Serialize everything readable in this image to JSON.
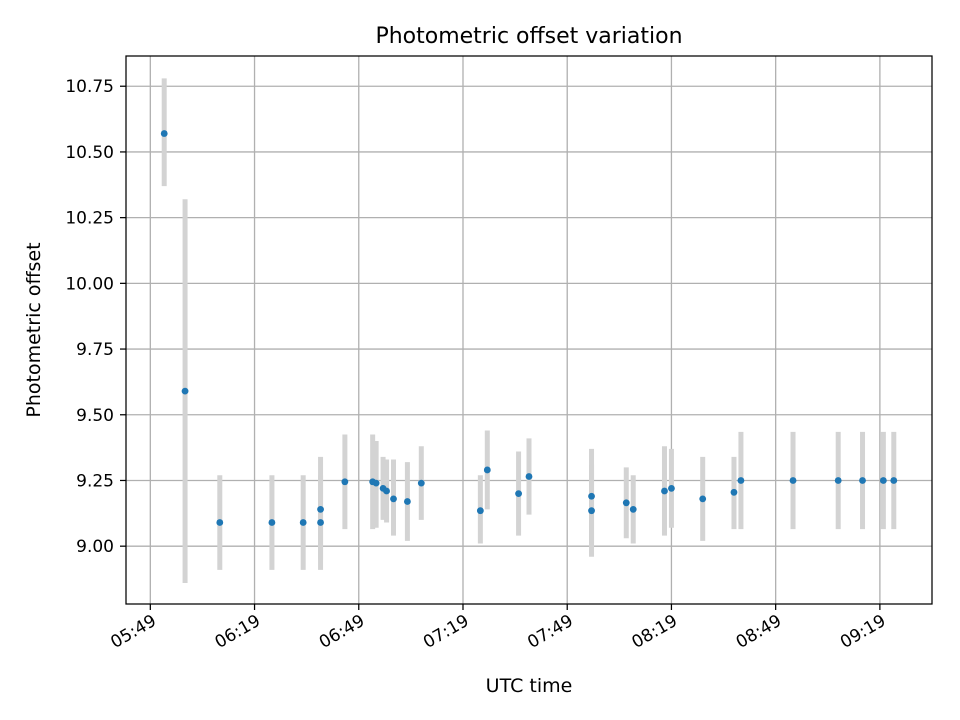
{
  "chart_data": {
    "type": "scatter",
    "title": "Photometric offset variation",
    "xlabel": "UTC time",
    "ylabel": "Photometric offset",
    "x_unit": "UTC HH:MM",
    "xlim": [
      "05:42",
      "09:34"
    ],
    "ylim": [
      8.78,
      10.865
    ],
    "x_ticks": [
      "05:49",
      "06:19",
      "06:49",
      "07:19",
      "07:49",
      "08:19",
      "08:49",
      "09:19"
    ],
    "y_ticks": [
      "9.00",
      "9.25",
      "9.50",
      "9.75",
      "10.00",
      "10.25",
      "10.50",
      "10.75"
    ],
    "grid": true,
    "colors": {
      "points": "#1f77b4",
      "errorbars": "#d3d3d3",
      "grid": "#b0b0b0"
    },
    "series": [
      {
        "points": [
          {
            "x": "05:53",
            "y": 10.57,
            "ylo": 10.37,
            "yhi": 10.78
          },
          {
            "x": "05:59",
            "y": 9.59,
            "ylo": 8.86,
            "yhi": 10.32
          },
          {
            "x": "06:09",
            "y": 9.09,
            "ylo": 8.91,
            "yhi": 9.27
          },
          {
            "x": "06:24",
            "y": 9.09,
            "ylo": 8.91,
            "yhi": 9.27
          },
          {
            "x": "06:33",
            "y": 9.09,
            "ylo": 8.91,
            "yhi": 9.27
          },
          {
            "x": "06:38",
            "y": 9.09,
            "ylo": 8.91,
            "yhi": 9.27
          },
          {
            "x": "06:38",
            "y": 9.14,
            "ylo": 8.95,
            "yhi": 9.34
          },
          {
            "x": "06:45",
            "y": 9.245,
            "ylo": 9.065,
            "yhi": 9.425
          },
          {
            "x": "06:53",
            "y": 9.245,
            "ylo": 9.065,
            "yhi": 9.425
          },
          {
            "x": "06:54",
            "y": 9.24,
            "ylo": 9.07,
            "yhi": 9.4
          },
          {
            "x": "06:56",
            "y": 9.22,
            "ylo": 9.1,
            "yhi": 9.34
          },
          {
            "x": "06:57",
            "y": 9.21,
            "ylo": 9.09,
            "yhi": 9.33
          },
          {
            "x": "06:59",
            "y": 9.18,
            "ylo": 9.04,
            "yhi": 9.33
          },
          {
            "x": "07:03",
            "y": 9.17,
            "ylo": 9.02,
            "yhi": 9.32
          },
          {
            "x": "07:07",
            "y": 9.24,
            "ylo": 9.1,
            "yhi": 9.38
          },
          {
            "x": "07:24",
            "y": 9.135,
            "ylo": 9.01,
            "yhi": 9.27
          },
          {
            "x": "07:26",
            "y": 9.29,
            "ylo": 9.14,
            "yhi": 9.44
          },
          {
            "x": "07:35",
            "y": 9.2,
            "ylo": 9.04,
            "yhi": 9.36
          },
          {
            "x": "07:38",
            "y": 9.265,
            "ylo": 9.12,
            "yhi": 9.41
          },
          {
            "x": "07:56",
            "y": 9.19,
            "ylo": 9.01,
            "yhi": 9.37
          },
          {
            "x": "07:56",
            "y": 9.135,
            "ylo": 8.96,
            "yhi": 9.31
          },
          {
            "x": "08:06",
            "y": 9.165,
            "ylo": 9.03,
            "yhi": 9.3
          },
          {
            "x": "08:08",
            "y": 9.14,
            "ylo": 9.01,
            "yhi": 9.27
          },
          {
            "x": "08:17",
            "y": 9.21,
            "ylo": 9.04,
            "yhi": 9.38
          },
          {
            "x": "08:19",
            "y": 9.22,
            "ylo": 9.07,
            "yhi": 9.37
          },
          {
            "x": "08:28",
            "y": 9.18,
            "ylo": 9.02,
            "yhi": 9.34
          },
          {
            "x": "08:37",
            "y": 9.205,
            "ylo": 9.065,
            "yhi": 9.34
          },
          {
            "x": "08:39",
            "y": 9.25,
            "ylo": 9.065,
            "yhi": 9.435
          },
          {
            "x": "08:54",
            "y": 9.25,
            "ylo": 9.065,
            "yhi": 9.435
          },
          {
            "x": "09:07",
            "y": 9.25,
            "ylo": 9.065,
            "yhi": 9.435
          },
          {
            "x": "09:14",
            "y": 9.25,
            "ylo": 9.065,
            "yhi": 9.435
          },
          {
            "x": "09:20",
            "y": 9.25,
            "ylo": 9.065,
            "yhi": 9.435
          },
          {
            "x": "09:23",
            "y": 9.25,
            "ylo": 9.065,
            "yhi": 9.435
          }
        ]
      }
    ]
  }
}
